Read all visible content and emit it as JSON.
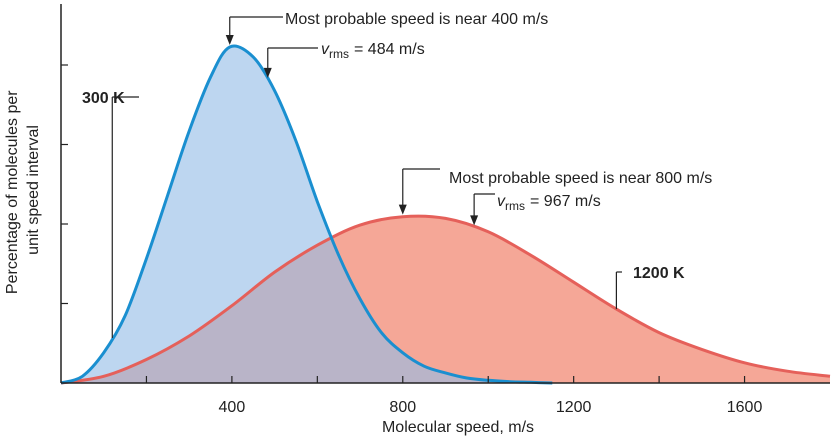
{
  "chart_data": {
    "type": "area",
    "title": "",
    "xlabel": "Molecular speed, m/s",
    "ylabel_lines": [
      "Percentage of molecules per",
      "unit speed interval"
    ],
    "xlim": [
      0,
      1800
    ],
    "x_ticks": [
      400,
      800,
      1200,
      1600
    ],
    "x_minor_ticks": [
      200,
      400,
      600,
      800,
      1000,
      1200,
      1400,
      1600
    ],
    "y_tick_count": 4,
    "y_ticks_labeled": false,
    "grid": false,
    "series": [
      {
        "name": "300 K",
        "color": "#1a8fd0",
        "fill": "#94bde6",
        "x": [
          0,
          50,
          100,
          150,
          200,
          250,
          300,
          350,
          395,
          450,
          500,
          550,
          600,
          650,
          700,
          750,
          800,
          850,
          900,
          950,
          1000,
          1050,
          1100,
          1150
        ],
        "y": [
          0.0,
          0.02,
          0.09,
          0.2,
          0.37,
          0.56,
          0.75,
          0.91,
          1.0,
          0.97,
          0.87,
          0.72,
          0.54,
          0.38,
          0.25,
          0.15,
          0.09,
          0.05,
          0.03,
          0.015,
          0.008,
          0.004,
          0.002,
          0.0
        ]
      },
      {
        "name": "1200 K",
        "color": "#e5605a",
        "fill": "#f5a797",
        "x": [
          0,
          100,
          200,
          300,
          400,
          500,
          600,
          700,
          800,
          900,
          1000,
          1100,
          1200,
          1300,
          1400,
          1500,
          1600,
          1700,
          1800
        ],
        "y": [
          0.0,
          0.02,
          0.07,
          0.14,
          0.23,
          0.33,
          0.41,
          0.47,
          0.495,
          0.49,
          0.45,
          0.38,
          0.3,
          0.22,
          0.15,
          0.1,
          0.06,
          0.035,
          0.02
        ]
      }
    ],
    "annotations": {
      "t300": {
        "most_probable": "Most probable speed is near 400 m/s",
        "most_probable_x": 395,
        "rms_symbol": "v",
        "rms_subscript": "rms",
        "rms_value": "= 484 m/s",
        "rms_x": 484
      },
      "t1200": {
        "most_probable": "Most probable speed is near 800 m/s",
        "most_probable_x": 800,
        "rms_symbol": "v",
        "rms_subscript": "rms",
        "rms_value": "= 967 m/s",
        "rms_x": 967
      }
    }
  }
}
